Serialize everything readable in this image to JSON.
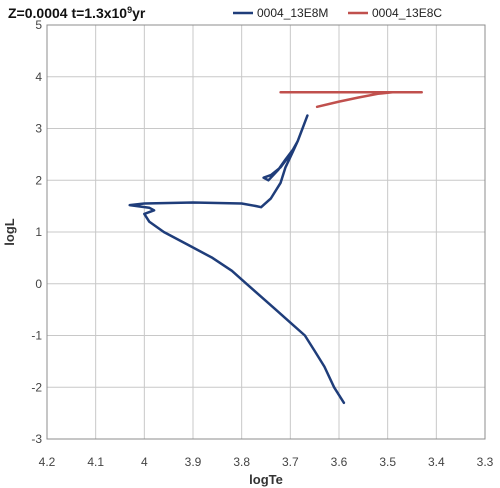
{
  "chart_data": {
    "type": "line",
    "title": {
      "prefix": "Z=0.0004  t=1.3x10",
      "superscript": "9",
      "suffix": "yr"
    },
    "xlabel": "logTe",
    "ylabel": "logL",
    "xlim": [
      4.2,
      3.3
    ],
    "ylim": [
      -3,
      5
    ],
    "x_reversed": true,
    "x_ticks": [
      4.2,
      4.1,
      4.0,
      3.9,
      3.8,
      3.7,
      3.6,
      3.5,
      3.4,
      3.3
    ],
    "x_tick_labels": [
      "4.2",
      "4.1",
      "4",
      "3.9",
      "3.8",
      "3.7",
      "3.6",
      "3.5",
      "3.4",
      "3.3"
    ],
    "y_ticks": [
      -3,
      -2,
      -1,
      0,
      1,
      2,
      3,
      4,
      5
    ],
    "y_tick_labels": [
      "-3",
      "-2",
      "-1",
      "0",
      "1",
      "2",
      "3",
      "4",
      "5"
    ],
    "grid": true,
    "legend_position": "top",
    "series": [
      {
        "name": "0004_13E8M",
        "color": "#1f3d7a",
        "points": [
          [
            3.59,
            -2.3
          ],
          [
            3.61,
            -2.0
          ],
          [
            3.63,
            -1.6
          ],
          [
            3.65,
            -1.3
          ],
          [
            3.67,
            -1.0
          ],
          [
            3.7,
            -0.75
          ],
          [
            3.73,
            -0.5
          ],
          [
            3.76,
            -0.25
          ],
          [
            3.79,
            0.0
          ],
          [
            3.82,
            0.25
          ],
          [
            3.86,
            0.5
          ],
          [
            3.91,
            0.75
          ],
          [
            3.96,
            1.0
          ],
          [
            3.99,
            1.2
          ],
          [
            4.0,
            1.35
          ],
          [
            3.98,
            1.42
          ],
          [
            3.99,
            1.47
          ],
          [
            4.03,
            1.52
          ],
          [
            4.0,
            1.55
          ],
          [
            3.95,
            1.56
          ],
          [
            3.9,
            1.57
          ],
          [
            3.85,
            1.56
          ],
          [
            3.8,
            1.55
          ],
          [
            3.77,
            1.5
          ],
          [
            3.76,
            1.48
          ],
          [
            3.74,
            1.65
          ],
          [
            3.72,
            1.95
          ],
          [
            3.71,
            2.25
          ],
          [
            3.695,
            2.55
          ],
          [
            3.685,
            2.75
          ],
          [
            3.69,
            2.65
          ],
          [
            3.71,
            2.4
          ],
          [
            3.725,
            2.2
          ],
          [
            3.745,
            2.0
          ],
          [
            3.755,
            2.05
          ],
          [
            3.74,
            2.1
          ],
          [
            3.72,
            2.25
          ],
          [
            3.7,
            2.5
          ],
          [
            3.685,
            2.75
          ],
          [
            3.675,
            3.0
          ],
          [
            3.665,
            3.25
          ]
        ]
      },
      {
        "name": "0004_13E8C",
        "color": "#c0504d",
        "points": [
          [
            3.72,
            3.7
          ],
          [
            3.48,
            3.7
          ],
          [
            3.43,
            3.7
          ],
          [
            3.49,
            3.7
          ],
          [
            3.52,
            3.67
          ],
          [
            3.56,
            3.6
          ],
          [
            3.6,
            3.52
          ],
          [
            3.645,
            3.42
          ]
        ]
      }
    ]
  }
}
